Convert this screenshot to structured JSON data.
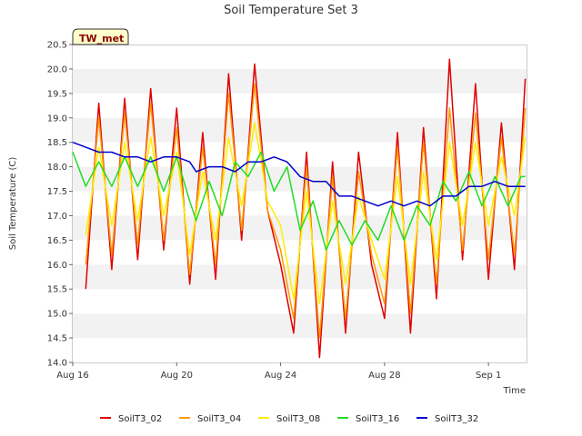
{
  "chart_data": {
    "type": "line",
    "title": "Soil Temperature Set 3",
    "xlabel": "Time",
    "ylabel": "Soil Temperature (C)",
    "badge": "TW_met",
    "x_domain": [
      "2023-08-16",
      "2023-09-02 12:00"
    ],
    "xticks": [
      {
        "label": "Aug 16",
        "date": "2023-08-16"
      },
      {
        "label": "Aug 20",
        "date": "2023-08-20"
      },
      {
        "label": "Aug 24",
        "date": "2023-08-24"
      },
      {
        "label": "Aug 28",
        "date": "2023-08-28"
      },
      {
        "label": "Sep 1",
        "date": "2023-09-01"
      }
    ],
    "ylim": [
      14.0,
      20.5
    ],
    "yticks": [
      "14.0",
      "14.5",
      "15.0",
      "15.5",
      "16.0",
      "16.5",
      "17.0",
      "17.5",
      "18.0",
      "18.5",
      "19.0",
      "19.5",
      "20.0",
      "20.5"
    ],
    "grid": "horizontal bands",
    "legend_position": "bottom",
    "series": [
      {
        "name": "SoilT3_02",
        "color": "#e00000",
        "x": [
          "2023-08-16 12:00",
          "2023-08-17 00:00",
          "2023-08-17 12:00",
          "2023-08-18 00:00",
          "2023-08-18 12:00",
          "2023-08-19 00:00",
          "2023-08-19 12:00",
          "2023-08-20 00:00",
          "2023-08-20 12:00",
          "2023-08-21 00:00",
          "2023-08-21 12:00",
          "2023-08-22 00:00",
          "2023-08-22 12:00",
          "2023-08-23 00:00",
          "2023-08-23 12:00",
          "2023-08-24 00:00",
          "2023-08-24 12:00",
          "2023-08-25 00:00",
          "2023-08-25 12:00",
          "2023-08-26 00:00",
          "2023-08-26 12:00",
          "2023-08-27 00:00",
          "2023-08-27 12:00",
          "2023-08-28 00:00",
          "2023-08-28 12:00",
          "2023-08-29 00:00",
          "2023-08-29 12:00",
          "2023-08-30 00:00",
          "2023-08-30 12:00",
          "2023-08-31 00:00",
          "2023-08-31 12:00",
          "2023-09-01 00:00",
          "2023-09-01 12:00",
          "2023-09-02 00:00",
          "2023-09-02 10:00"
        ],
        "y": [
          15.5,
          19.3,
          15.9,
          19.4,
          16.1,
          19.6,
          16.3,
          19.2,
          15.6,
          18.7,
          15.7,
          19.9,
          16.5,
          20.1,
          17.1,
          16.0,
          14.6,
          18.3,
          14.1,
          18.1,
          14.6,
          18.3,
          16.0,
          14.9,
          18.7,
          14.6,
          18.8,
          15.3,
          20.2,
          16.1,
          19.7,
          15.7,
          18.9,
          15.9,
          19.8
        ]
      },
      {
        "name": "SoilT3_04",
        "color": "#ff9900",
        "x": [
          "2023-08-16 12:00",
          "2023-08-17 00:00",
          "2023-08-17 12:00",
          "2023-08-18 00:00",
          "2023-08-18 12:00",
          "2023-08-19 00:00",
          "2023-08-19 12:00",
          "2023-08-20 00:00",
          "2023-08-20 12:00",
          "2023-08-21 00:00",
          "2023-08-21 12:00",
          "2023-08-22 00:00",
          "2023-08-22 12:00",
          "2023-08-23 00:00",
          "2023-08-23 12:00",
          "2023-08-24 00:00",
          "2023-08-24 12:00",
          "2023-08-25 00:00",
          "2023-08-25 12:00",
          "2023-08-26 00:00",
          "2023-08-26 12:00",
          "2023-08-27 00:00",
          "2023-08-27 12:00",
          "2023-08-28 00:00",
          "2023-08-28 12:00",
          "2023-08-29 00:00",
          "2023-08-29 12:00",
          "2023-08-30 00:00",
          "2023-08-30 12:00",
          "2023-08-31 00:00",
          "2023-08-31 12:00",
          "2023-09-01 00:00",
          "2023-09-01 12:00",
          "2023-09-02 00:00",
          "2023-09-02 10:00"
        ],
        "y": [
          16.0,
          19.0,
          16.2,
          19.1,
          16.4,
          19.3,
          16.5,
          18.8,
          15.8,
          18.4,
          16.0,
          19.5,
          16.7,
          19.7,
          17.1,
          16.3,
          14.9,
          18.0,
          14.5,
          17.8,
          14.9,
          17.9,
          16.2,
          15.2,
          18.4,
          15.0,
          18.5,
          15.6,
          19.2,
          16.3,
          19.1,
          16.1,
          18.6,
          16.2,
          19.2
        ]
      },
      {
        "name": "SoilT3_08",
        "color": "#ffee00",
        "x": [
          "2023-08-16 12:00",
          "2023-08-17 00:00",
          "2023-08-17 12:00",
          "2023-08-18 00:00",
          "2023-08-18 12:00",
          "2023-08-19 00:00",
          "2023-08-19 12:00",
          "2023-08-20 00:00",
          "2023-08-20 12:00",
          "2023-08-21 00:00",
          "2023-08-21 12:00",
          "2023-08-22 00:00",
          "2023-08-22 12:00",
          "2023-08-23 00:00",
          "2023-08-23 12:00",
          "2023-08-24 00:00",
          "2023-08-24 12:00",
          "2023-08-25 00:00",
          "2023-08-25 12:00",
          "2023-08-26 00:00",
          "2023-08-26 12:00",
          "2023-08-27 00:00",
          "2023-08-27 12:00",
          "2023-08-28 00:00",
          "2023-08-28 12:00",
          "2023-08-29 00:00",
          "2023-08-29 12:00",
          "2023-08-30 00:00",
          "2023-08-30 12:00",
          "2023-08-31 00:00",
          "2023-08-31 12:00",
          "2023-09-01 00:00",
          "2023-09-01 12:00",
          "2023-09-02 00:00",
          "2023-09-02 10:00"
        ],
        "y": [
          16.6,
          18.4,
          16.8,
          18.5,
          16.9,
          18.6,
          17.0,
          18.3,
          16.2,
          17.9,
          16.5,
          18.6,
          17.2,
          18.9,
          17.3,
          16.8,
          15.3,
          17.5,
          15.2,
          17.3,
          15.6,
          17.4,
          16.5,
          15.7,
          17.8,
          15.6,
          17.9,
          16.1,
          18.5,
          16.8,
          18.5,
          16.8,
          18.2,
          17.0,
          18.6
        ]
      },
      {
        "name": "SoilT3_16",
        "color": "#22dd22",
        "x": [
          "2023-08-16 00:00",
          "2023-08-16 12:00",
          "2023-08-17 00:00",
          "2023-08-17 12:00",
          "2023-08-18 00:00",
          "2023-08-18 12:00",
          "2023-08-19 00:00",
          "2023-08-19 12:00",
          "2023-08-20 00:00",
          "2023-08-20 12:00",
          "2023-08-20 18:00",
          "2023-08-21 06:00",
          "2023-08-21 18:00",
          "2023-08-22 06:00",
          "2023-08-22 18:00",
          "2023-08-23 06:00",
          "2023-08-23 18:00",
          "2023-08-24 06:00",
          "2023-08-24 18:00",
          "2023-08-25 06:00",
          "2023-08-25 18:00",
          "2023-08-26 06:00",
          "2023-08-26 18:00",
          "2023-08-27 06:00",
          "2023-08-27 18:00",
          "2023-08-28 06:00",
          "2023-08-28 18:00",
          "2023-08-29 06:00",
          "2023-08-29 18:00",
          "2023-08-30 06:00",
          "2023-08-30 18:00",
          "2023-08-31 06:00",
          "2023-08-31 18:00",
          "2023-09-01 06:00",
          "2023-09-01 18:00",
          "2023-09-02 06:00",
          "2023-09-02 10:00"
        ],
        "y": [
          18.3,
          17.6,
          18.1,
          17.6,
          18.2,
          17.6,
          18.2,
          17.5,
          18.2,
          17.3,
          16.9,
          17.7,
          17.0,
          18.1,
          17.8,
          18.3,
          17.5,
          18.0,
          16.7,
          17.3,
          16.3,
          16.9,
          16.4,
          16.9,
          16.5,
          17.2,
          16.5,
          17.2,
          16.8,
          17.7,
          17.3,
          17.9,
          17.2,
          17.8,
          17.2,
          17.8,
          17.8
        ]
      },
      {
        "name": "SoilT3_32",
        "color": "#0000cc",
        "x": [
          "2023-08-16 00:00",
          "2023-08-16 12:00",
          "2023-08-17 00:00",
          "2023-08-17 12:00",
          "2023-08-18 00:00",
          "2023-08-18 12:00",
          "2023-08-19 00:00",
          "2023-08-19 12:00",
          "2023-08-20 00:00",
          "2023-08-20 12:00",
          "2023-08-20 18:00",
          "2023-08-21 06:00",
          "2023-08-21 18:00",
          "2023-08-22 06:00",
          "2023-08-22 18:00",
          "2023-08-23 06:00",
          "2023-08-23 18:00",
          "2023-08-24 06:00",
          "2023-08-24 18:00",
          "2023-08-25 06:00",
          "2023-08-25 18:00",
          "2023-08-26 06:00",
          "2023-08-26 18:00",
          "2023-08-27 06:00",
          "2023-08-27 18:00",
          "2023-08-28 06:00",
          "2023-08-28 18:00",
          "2023-08-29 06:00",
          "2023-08-29 18:00",
          "2023-08-30 06:00",
          "2023-08-30 18:00",
          "2023-08-31 06:00",
          "2023-08-31 18:00",
          "2023-09-01 06:00",
          "2023-09-01 18:00",
          "2023-09-02 06:00",
          "2023-09-02 10:00"
        ],
        "y": [
          18.5,
          18.4,
          18.3,
          18.3,
          18.2,
          18.2,
          18.1,
          18.2,
          18.2,
          18.1,
          17.9,
          18.0,
          18.0,
          17.9,
          18.1,
          18.1,
          18.2,
          18.1,
          17.8,
          17.7,
          17.7,
          17.4,
          17.4,
          17.3,
          17.2,
          17.3,
          17.2,
          17.3,
          17.2,
          17.4,
          17.4,
          17.6,
          17.6,
          17.7,
          17.6,
          17.6,
          17.6
        ]
      }
    ]
  }
}
